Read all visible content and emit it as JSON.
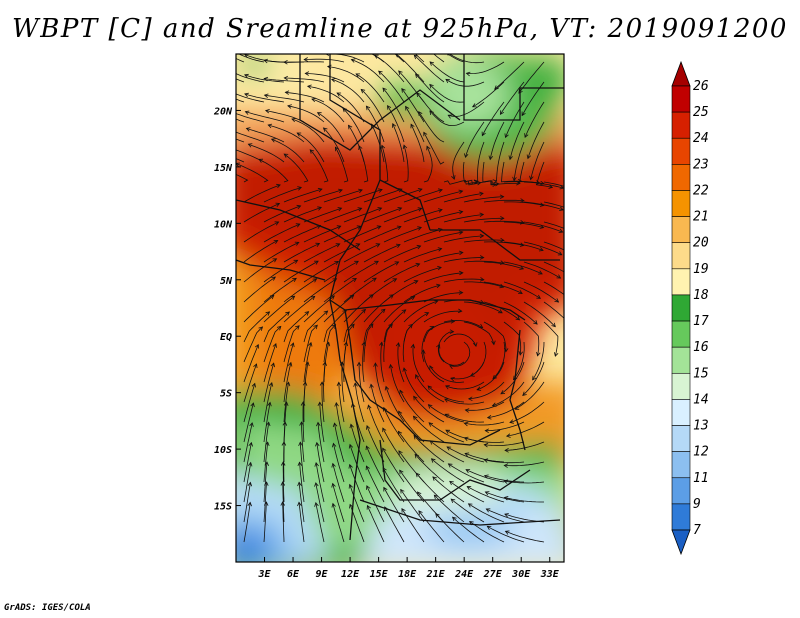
{
  "title": "WBPT [C] and Sreamline at 925hPa, VT: 2019091200",
  "credit": "GrADS: IGES/COLA",
  "map": {
    "lat_labels": [
      "20N",
      "15N",
      "10N",
      "5N",
      "EQ",
      "5S",
      "10S",
      "15S"
    ],
    "lon_labels": [
      "3E",
      "6E",
      "9E",
      "12E",
      "15E",
      "18E",
      "21E",
      "24E",
      "27E",
      "30E",
      "33E"
    ],
    "lat_values": [
      20,
      15,
      10,
      5,
      0,
      -5,
      -10,
      -15
    ],
    "lon_values": [
      3,
      6,
      9,
      12,
      15,
      18,
      21,
      24,
      27,
      30,
      33
    ],
    "lon_range": [
      0,
      34.5
    ],
    "lat_range": [
      -20,
      25
    ]
  },
  "colorbar": {
    "labels": [
      "26",
      "25",
      "24",
      "23",
      "22",
      "21",
      "20",
      "19",
      "18",
      "17",
      "16",
      "15",
      "14",
      "13",
      "12",
      "11",
      "9",
      "7"
    ],
    "colors": [
      "#a50000",
      "#c00000",
      "#d62000",
      "#e84500",
      "#f06800",
      "#f59300",
      "#f9b850",
      "#fddb8a",
      "#fff3b0",
      "#2fa834",
      "#66c95c",
      "#a3e398",
      "#d8f4d3",
      "#d9f0ff",
      "#b5d9f7",
      "#8cbff0",
      "#5c9ee6",
      "#2f7bd8",
      "#1a5fc4"
    ]
  }
}
